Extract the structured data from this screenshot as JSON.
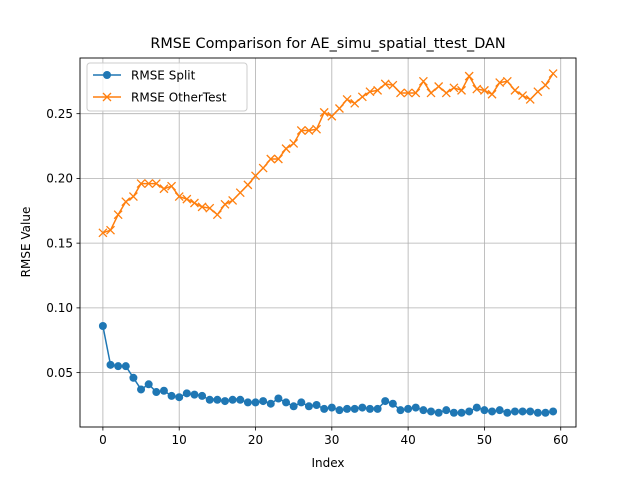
{
  "chart_data": {
    "type": "line",
    "title": "RMSE Comparison for AE_simu_spatial_ttest_DAN",
    "xlabel": "Index",
    "ylabel": "RMSE Value",
    "xlim": [
      -3,
      62
    ],
    "ylim": [
      0.008,
      0.293
    ],
    "xticks": [
      0,
      10,
      20,
      30,
      40,
      50,
      60
    ],
    "yticks": [
      0.05,
      0.1,
      0.15,
      0.2,
      0.25
    ],
    "ytick_labels": [
      "0.05",
      "0.10",
      "0.15",
      "0.20",
      "0.25"
    ],
    "grid": true,
    "legend_position": "top-left",
    "x": [
      0,
      1,
      2,
      3,
      4,
      5,
      6,
      7,
      8,
      9,
      10,
      11,
      12,
      13,
      14,
      15,
      16,
      17,
      18,
      19,
      20,
      21,
      22,
      23,
      24,
      25,
      26,
      27,
      28,
      29,
      30,
      31,
      32,
      33,
      34,
      35,
      36,
      37,
      38,
      39,
      40,
      41,
      42,
      43,
      44,
      45,
      46,
      47,
      48,
      49,
      50,
      51,
      52,
      53,
      54,
      55,
      56,
      57,
      58,
      59
    ],
    "series": [
      {
        "name": "RMSE Split",
        "color": "#1f77b4",
        "marker": "circle",
        "values": [
          0.086,
          0.056,
          0.055,
          0.055,
          0.046,
          0.037,
          0.041,
          0.035,
          0.036,
          0.032,
          0.031,
          0.034,
          0.033,
          0.032,
          0.029,
          0.029,
          0.028,
          0.029,
          0.029,
          0.027,
          0.027,
          0.028,
          0.026,
          0.03,
          0.027,
          0.024,
          0.027,
          0.024,
          0.025,
          0.022,
          0.023,
          0.021,
          0.022,
          0.022,
          0.023,
          0.022,
          0.022,
          0.028,
          0.026,
          0.021,
          0.022,
          0.023,
          0.021,
          0.02,
          0.019,
          0.021,
          0.019,
          0.019,
          0.02,
          0.023,
          0.021,
          0.02,
          0.021,
          0.019,
          0.02,
          0.02,
          0.02,
          0.019,
          0.019,
          0.02
        ]
      },
      {
        "name": "RMSE OtherTest",
        "color": "#ff7f0e",
        "marker": "x",
        "values": [
          0.158,
          0.16,
          0.172,
          0.182,
          0.186,
          0.196,
          0.196,
          0.196,
          0.192,
          0.194,
          0.186,
          0.184,
          0.181,
          0.178,
          0.177,
          0.172,
          0.18,
          0.183,
          0.189,
          0.195,
          0.202,
          0.208,
          0.215,
          0.215,
          0.223,
          0.227,
          0.237,
          0.237,
          0.238,
          0.251,
          0.248,
          0.254,
          0.261,
          0.258,
          0.263,
          0.267,
          0.268,
          0.273,
          0.272,
          0.266,
          0.266,
          0.266,
          0.275,
          0.266,
          0.271,
          0.266,
          0.27,
          0.268,
          0.279,
          0.269,
          0.268,
          0.265,
          0.274,
          0.275,
          0.268,
          0.264,
          0.261,
          0.267,
          0.272,
          0.281
        ]
      }
    ]
  }
}
